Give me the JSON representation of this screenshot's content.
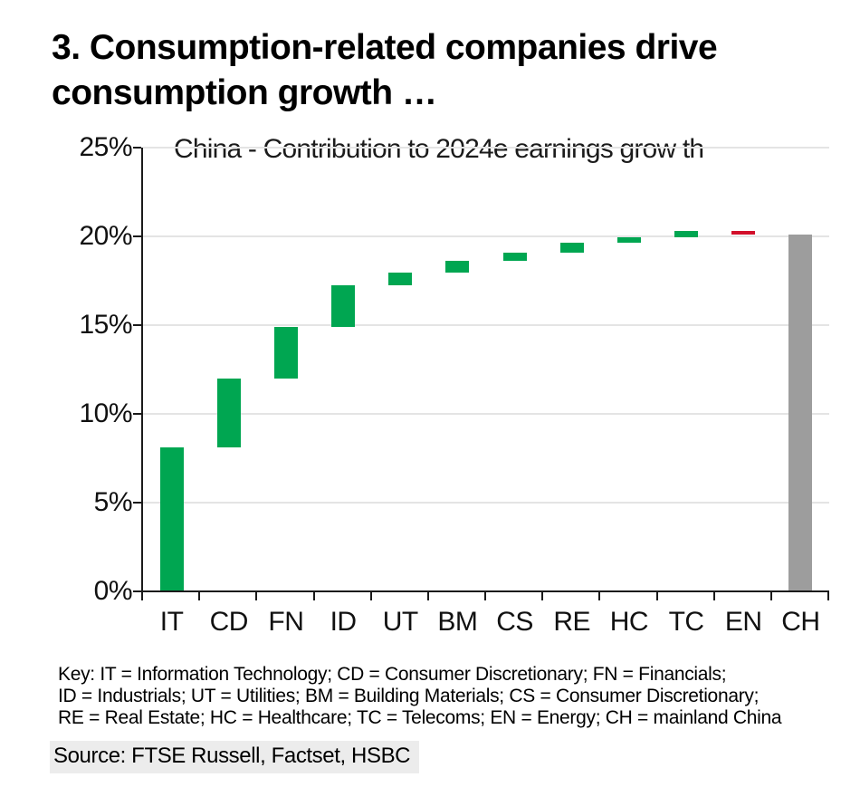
{
  "page": {
    "title_line1": "3. Consumption-related companies drive",
    "title_line2": "consumption growth …"
  },
  "chart_data": {
    "type": "bar",
    "subtype": "waterfall",
    "subtitle": "China - Contribution to 2024e earnings grow th",
    "categories": [
      "IT",
      "CD",
      "FN",
      "ID",
      "UT",
      "BM",
      "CS",
      "RE",
      "HC",
      "TC",
      "EN",
      "CH"
    ],
    "bars": [
      {
        "label": "IT",
        "from": 0,
        "to": 8.1,
        "kind": "increase"
      },
      {
        "label": "CD",
        "from": 8.1,
        "to": 12.0,
        "kind": "increase"
      },
      {
        "label": "FN",
        "from": 12.0,
        "to": 14.9,
        "kind": "increase"
      },
      {
        "label": "ID",
        "from": 14.9,
        "to": 17.25,
        "kind": "increase"
      },
      {
        "label": "UT",
        "from": 17.25,
        "to": 17.95,
        "kind": "increase"
      },
      {
        "label": "BM",
        "from": 17.95,
        "to": 18.6,
        "kind": "increase"
      },
      {
        "label": "CS",
        "from": 18.6,
        "to": 19.1,
        "kind": "increase"
      },
      {
        "label": "RE",
        "from": 19.1,
        "to": 19.65,
        "kind": "increase"
      },
      {
        "label": "HC",
        "from": 19.65,
        "to": 19.95,
        "kind": "increase"
      },
      {
        "label": "TC",
        "from": 19.95,
        "to": 20.3,
        "kind": "increase"
      },
      {
        "label": "EN",
        "from": 20.3,
        "to": 20.1,
        "kind": "decrease"
      },
      {
        "label": "CH",
        "from": 0,
        "to": 20.1,
        "kind": "total"
      }
    ],
    "y_axis": {
      "tick_labels": [
        "25%",
        "20%",
        "15%",
        "10%",
        "5%",
        "0%"
      ],
      "tick_values": [
        25,
        20,
        15,
        10,
        5,
        0
      ],
      "ylim": [
        0,
        25
      ],
      "grid": true,
      "legend": "none"
    },
    "colors": {
      "increase": "#00A651",
      "decrease": "#D2102B",
      "total": "#9D9D9D",
      "gridline": "#E4E4E4",
      "axis": "#1A1A1A"
    }
  },
  "footnote": {
    "key_lines": [
      "Key: IT = Information Technology; CD = Consumer Discretionary; FN = Financials;",
      "ID = Industrials; UT = Utilities; BM = Building Materials; CS = Consumer Discretionary;",
      "RE = Real Estate; HC = Healthcare; TC = Telecoms; EN = Energy; CH = mainland China"
    ]
  },
  "source": {
    "text": "Source: FTSE Russell, Factset, HSBC"
  }
}
